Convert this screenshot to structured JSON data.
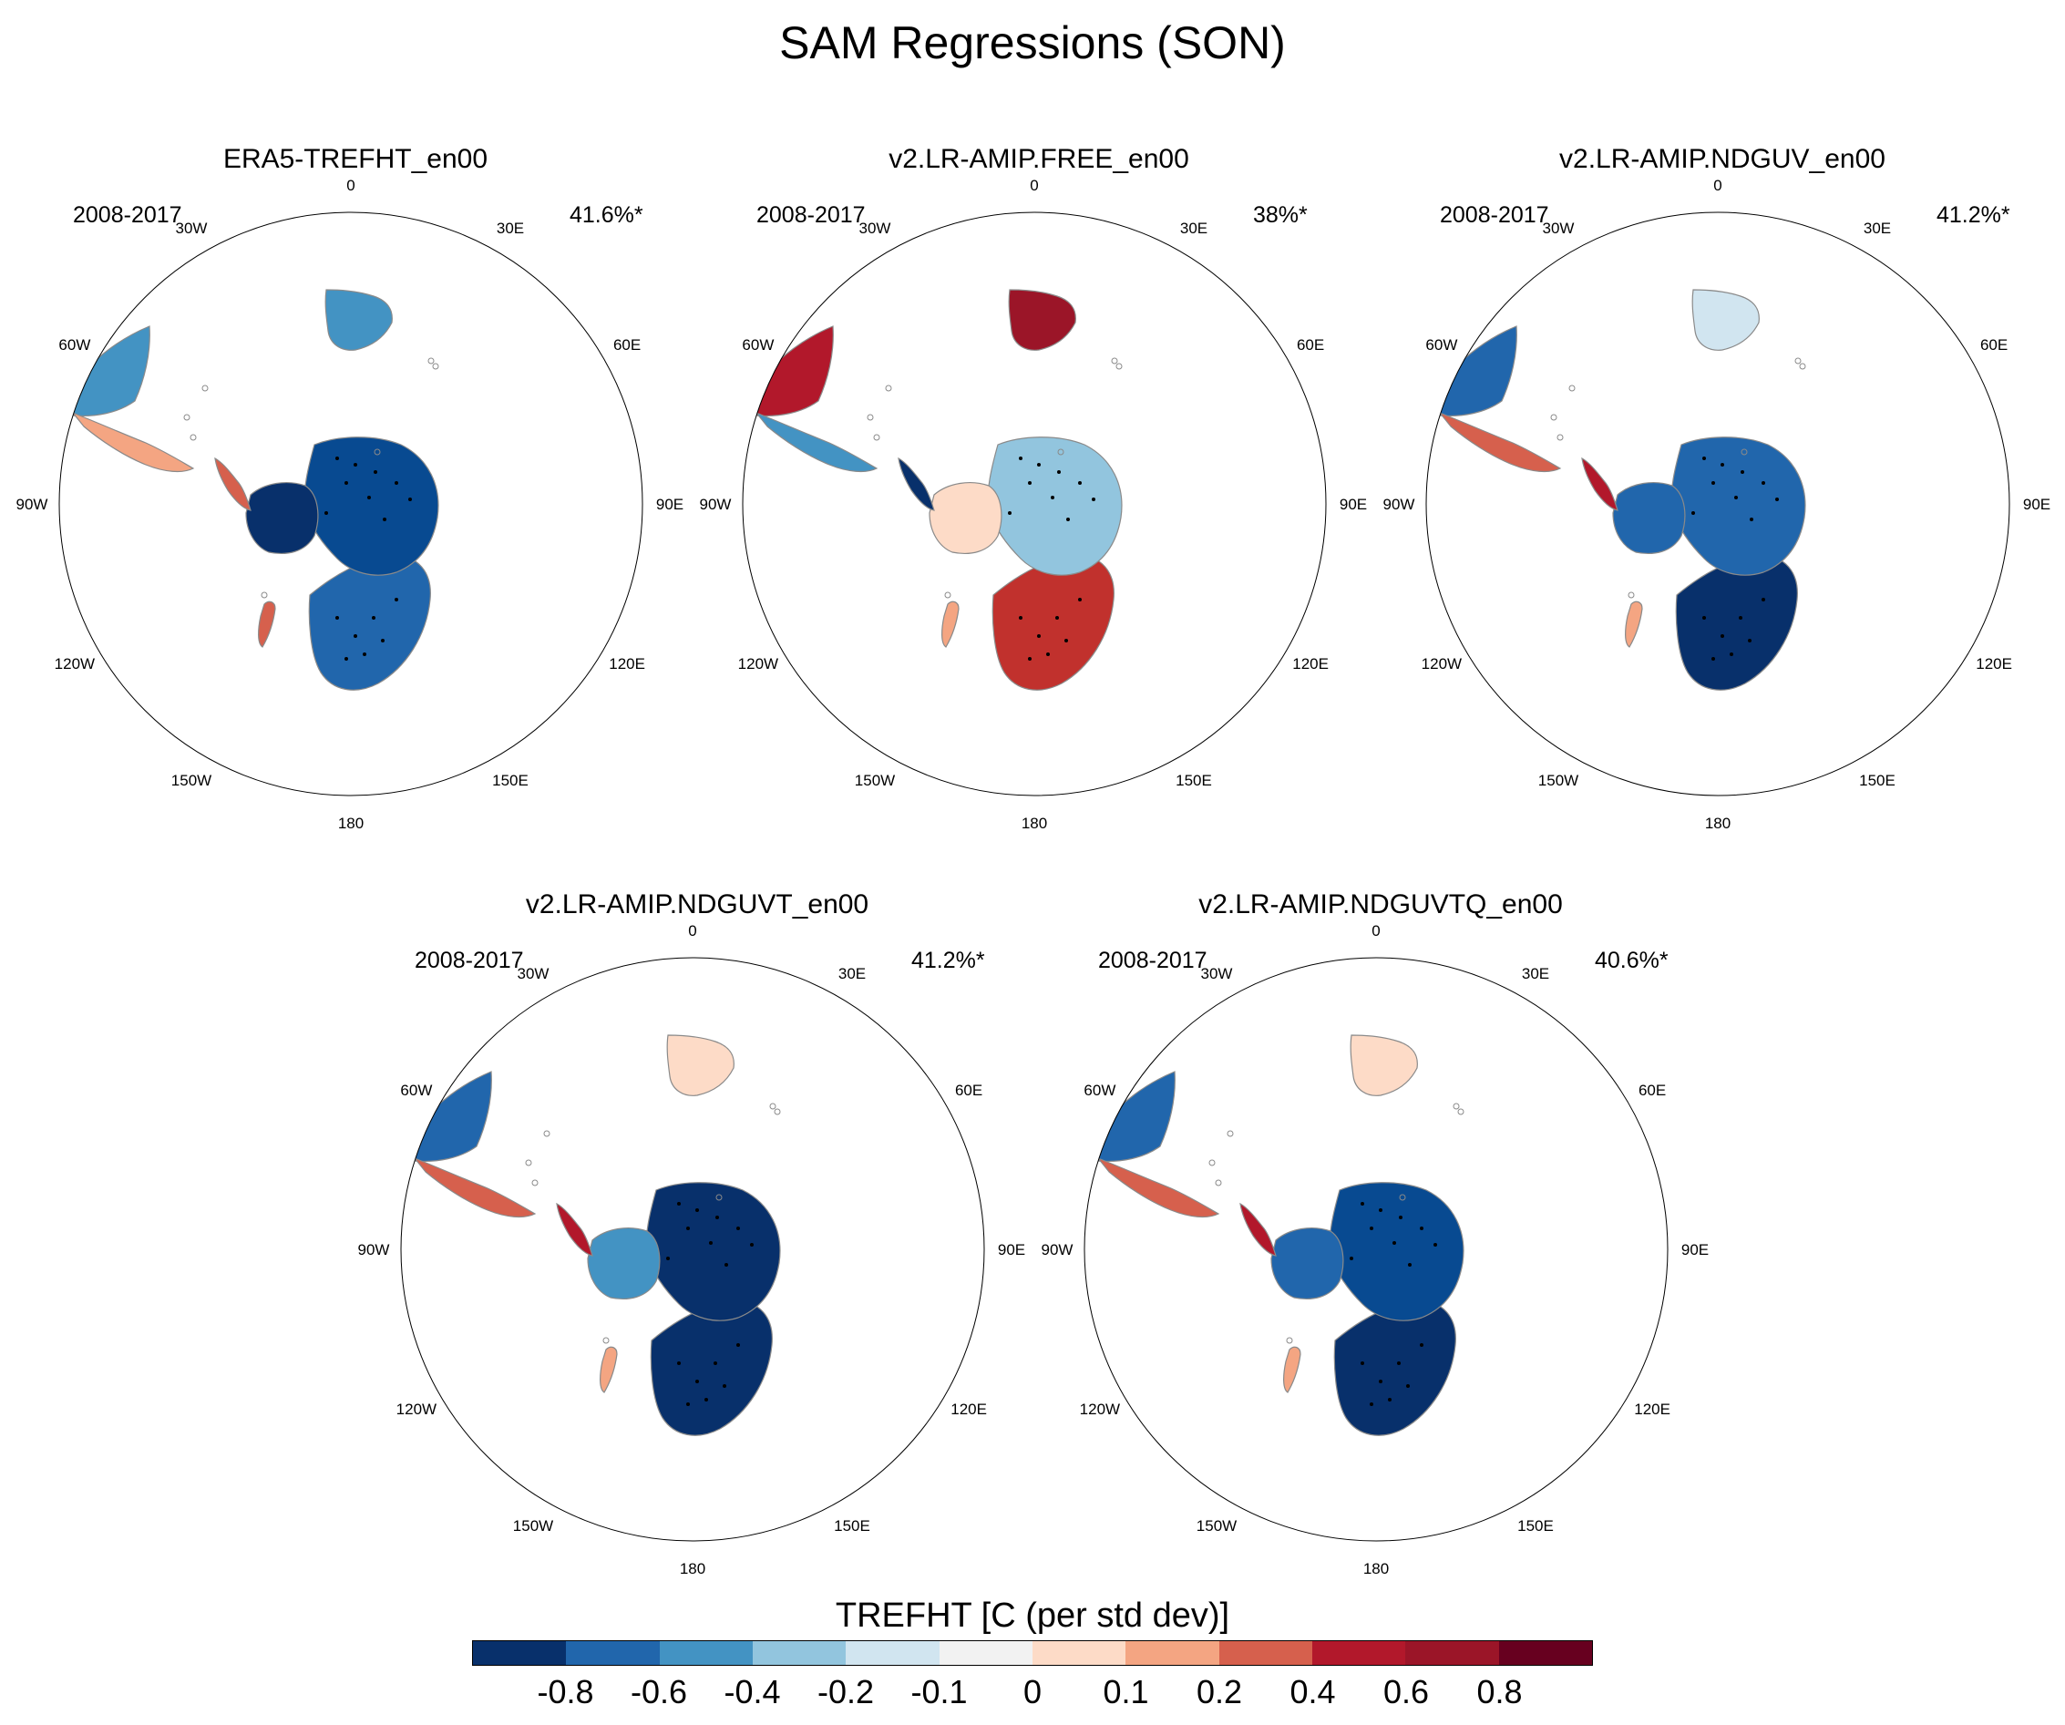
{
  "title": "SAM Regressions (SON)",
  "lon_labels": [
    "0",
    "30E",
    "60E",
    "90E",
    "120E",
    "150E",
    "180",
    "150W",
    "120W",
    "90W",
    "60W",
    "30W"
  ],
  "panels": [
    {
      "title": "ERA5-TREFHT_en00",
      "period": "2008-2017",
      "pct": "41.6%*",
      "ant_west": "#08306b",
      "ant_east": "#084a91",
      "ant_pen": "#d6604d",
      "aus": "#2166ac",
      "sam_s": "#f4a582",
      "sam_n": "#4393c3",
      "afr": "#4393c3",
      "nz": "#d6604d"
    },
    {
      "title": "v2.LR-AMIP.FREE_en00",
      "period": "2008-2017",
      "pct": "38%*",
      "ant_west": "#fddbc7",
      "ant_east": "#92c5de",
      "ant_pen": "#08306b",
      "aus": "#c1312d",
      "sam_s": "#4393c3",
      "sam_n": "#b2182b",
      "afr": "#9b1528",
      "nz": "#f4a582"
    },
    {
      "title": "v2.LR-AMIP.NDGUV_en00",
      "period": "2008-2017",
      "pct": "41.2%*",
      "ant_west": "#2166ac",
      "ant_east": "#2166ac",
      "ant_pen": "#b2182b",
      "aus": "#08306b",
      "sam_s": "#d6604d",
      "sam_n": "#2166ac",
      "afr": "#d1e5f0",
      "nz": "#f4a582"
    },
    {
      "title": "v2.LR-AMIP.NDGUVT_en00",
      "period": "2008-2017",
      "pct": "41.2%*",
      "ant_west": "#4393c3",
      "ant_east": "#08306b",
      "ant_pen": "#b2182b",
      "aus": "#08306b",
      "sam_s": "#d6604d",
      "sam_n": "#2166ac",
      "afr": "#fddbc7",
      "nz": "#f4a582"
    },
    {
      "title": "v2.LR-AMIP.NDGUVTQ_en00",
      "period": "2008-2017",
      "pct": "40.6%*",
      "ant_west": "#2166ac",
      "ant_east": "#084a91",
      "ant_pen": "#b2182b",
      "aus": "#08306b",
      "sam_s": "#d6604d",
      "sam_n": "#2166ac",
      "afr": "#fddbc7",
      "nz": "#f4a582"
    }
  ],
  "colorbar": {
    "title": "TREFHT [C (per std dev)]",
    "colors": [
      "#08306b",
      "#2166ac",
      "#4393c3",
      "#92c5de",
      "#d1e5f0",
      "#f2f2f2",
      "#fddbc7",
      "#f4a582",
      "#d6604d",
      "#b2182b",
      "#9b1528",
      "#67001f"
    ],
    "ticks": [
      "-0.8",
      "-0.6",
      "-0.4",
      "-0.2",
      "-0.1",
      "0",
      "0.1",
      "0.2",
      "0.4",
      "0.6",
      "0.8"
    ]
  }
}
